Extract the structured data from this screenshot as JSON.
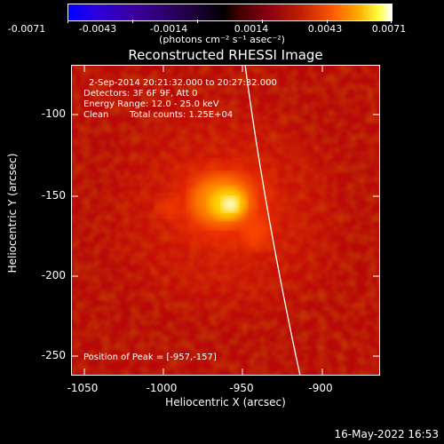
{
  "colorbar": {
    "ticks": [
      "-0.0071",
      "-0.0043",
      "-0.0014",
      "0.0014",
      "0.0043",
      "0.0071"
    ],
    "units_label": "(photons cm⁻² s⁻¹ asec⁻²)"
  },
  "plot": {
    "title": "Reconstructed RHESSI Image",
    "annotations": {
      "time_range": "2-Sep-2014 20:21:32.000 to 20:27:32.000",
      "detectors": "Detectors: 3F 6F 9F, Att 0",
      "energy_range": "Energy Range: 12.0 - 25.0 keV",
      "algorithm": "Clean",
      "total_counts": "Total counts: 1.25E+04",
      "peak_position": "Position of Peak = [-957,-157]"
    },
    "x_axis": {
      "label": "Heliocentric X (arcsec)",
      "ticks": [
        "-1050",
        "-1000",
        "-950",
        "-900"
      ],
      "tick_values": [
        -1050,
        -1000,
        -950,
        -900
      ],
      "range": [
        -1060,
        -865
      ]
    },
    "y_axis": {
      "label": "Heliocentric Y (arcsec)",
      "ticks": [
        "-100",
        "-150",
        "-200",
        "-250"
      ],
      "tick_values": [
        -100,
        -150,
        -200,
        -250
      ],
      "range": [
        -262,
        -74
      ]
    }
  },
  "timestamp": "16-May-2022 16:53"
}
